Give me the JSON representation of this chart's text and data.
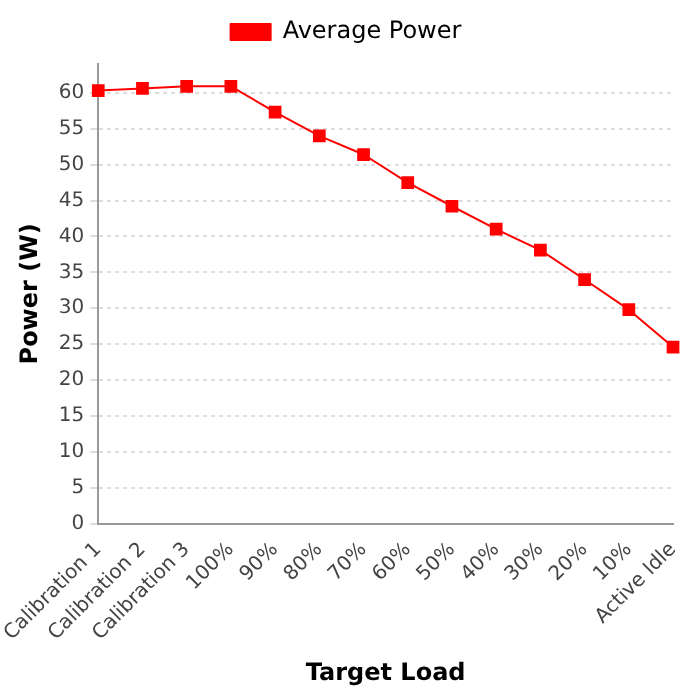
{
  "chart_data": {
    "type": "line",
    "xlabel": "Target Load",
    "ylabel": "Power (W)",
    "categories": [
      "Calibration 1",
      "Calibration 2",
      "Calibration 3",
      "100%",
      "90%",
      "80%",
      "70%",
      "60%",
      "50%",
      "40%",
      "30%",
      "20%",
      "10%",
      "Active Idle"
    ],
    "series": [
      {
        "name": "Average Power",
        "color": "#ff0000",
        "values": [
          60.3,
          60.6,
          60.9,
          60.9,
          57.3,
          54.0,
          51.4,
          47.5,
          44.2,
          41.0,
          38.1,
          34.0,
          29.8,
          24.6
        ]
      }
    ],
    "ylim": [
      0,
      64
    ],
    "yticks": [
      0,
      5,
      10,
      15,
      20,
      25,
      30,
      35,
      40,
      45,
      50,
      55,
      60
    ],
    "grid": "y",
    "legend": "top",
    "marker": "square",
    "line_style": "solid"
  }
}
